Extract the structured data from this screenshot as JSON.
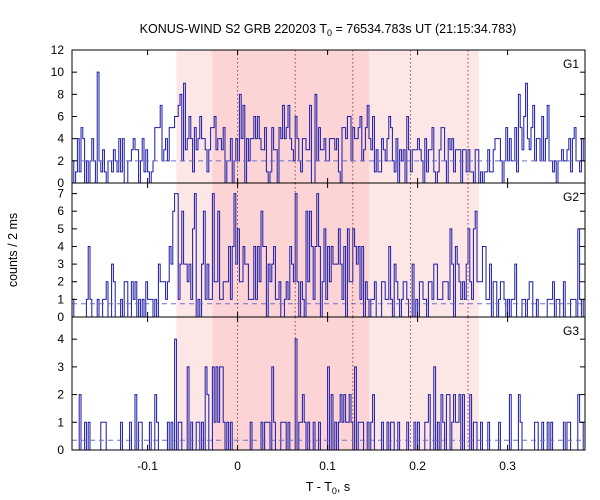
{
  "chart_data": {
    "type": "line",
    "style": "step histogram, three vertically stacked panels sharing one x axis",
    "title": {
      "prefix": "KONUS-WIND S2 GRB 220203 T",
      "sub": "0",
      "suffix": " = 76534.783s UT (21:15:34.783)"
    },
    "xlabel": {
      "prefix": "T - T",
      "sub": "0",
      "suffix": ", s"
    },
    "ylabel": "counts / 2 ms",
    "xlim": [
      -0.184,
      0.386
    ],
    "x_ticks": [
      -0.1,
      0,
      0.1,
      0.2,
      0.3
    ],
    "x_tick_labels": [
      "-0.1",
      "0",
      "0.1",
      "0.2",
      "0.3"
    ],
    "bin_width_s": 0.002,
    "line_color": "#1a1aa6",
    "background_color": "#6e6ec8",
    "shaded_intervals": [
      {
        "x0": -0.068,
        "x1": 0.268,
        "color": "#fde6e6"
      },
      {
        "x0": -0.028,
        "x1": 0.146,
        "color": "#fcd4d6"
      }
    ],
    "vertical_markers": [
      0,
      0.064,
      0.128,
      0.192,
      0.256
    ],
    "panels": [
      {
        "name": "G1",
        "ylim": [
          0,
          12
        ],
        "y_ticks": [
          0,
          2,
          4,
          6,
          8,
          10,
          12
        ],
        "background_level": 2.0,
        "keypoints": [
          [
            -0.184,
            2
          ],
          [
            -0.12,
            2.6
          ],
          [
            -0.1,
            3
          ],
          [
            -0.085,
            3.2
          ],
          [
            -0.07,
            4.5
          ],
          [
            -0.06,
            6
          ],
          [
            -0.04,
            3.5
          ],
          [
            -0.02,
            2.4
          ],
          [
            0.0,
            3.2
          ],
          [
            0.02,
            3.2
          ],
          [
            0.05,
            4.5
          ],
          [
            0.08,
            3.8
          ],
          [
            0.1,
            3
          ],
          [
            0.13,
            3.8
          ],
          [
            0.15,
            2.6
          ],
          [
            0.17,
            2.6
          ],
          [
            0.2,
            2.2
          ],
          [
            0.23,
            2.4
          ],
          [
            0.25,
            2
          ],
          [
            0.27,
            2.2
          ],
          [
            0.3,
            2.4
          ],
          [
            0.32,
            3
          ],
          [
            0.34,
            2.6
          ],
          [
            0.386,
            2.4
          ]
        ],
        "peaks": [
          [
            -0.059,
            9
          ],
          [
            -0.064,
            8
          ],
          [
            -0.084,
            7
          ],
          [
            -0.09,
            5
          ],
          [
            -0.041,
            6
          ],
          [
            -0.03,
            5
          ],
          [
            0.08,
            7
          ],
          [
            0.115,
            6
          ],
          [
            0.136,
            6
          ],
          [
            0.17,
            5
          ],
          [
            0.2,
            4
          ],
          [
            0.313,
            8
          ],
          [
            0.32,
            9
          ],
          [
            0.328,
            7
          ],
          [
            0.339,
            6
          ],
          [
            0.375,
            5
          ],
          [
            0.055,
            5
          ],
          [
            -0.127,
            4
          ]
        ],
        "zeros": [
          -0.168,
          -0.146,
          -0.097,
          -0.012,
          0.008,
          0.046,
          0.085,
          0.114,
          0.186,
          0.232,
          0.249,
          0.262,
          0.295,
          0.354
        ]
      },
      {
        "name": "G2",
        "ylim": [
          0,
          7.6
        ],
        "y_ticks": [
          0,
          1,
          2,
          3,
          4,
          5,
          6,
          7
        ],
        "background_level": 0.75,
        "keypoints": [
          [
            -0.184,
            0.4
          ],
          [
            -0.15,
            0.6
          ],
          [
            -0.12,
            0.7
          ],
          [
            -0.1,
            1
          ],
          [
            -0.085,
            2
          ],
          [
            -0.07,
            3.5
          ],
          [
            -0.05,
            3.4
          ],
          [
            -0.03,
            2.6
          ],
          [
            0.0,
            2.5
          ],
          [
            0.03,
            2.4
          ],
          [
            0.05,
            2.2
          ],
          [
            0.07,
            2.6
          ],
          [
            0.09,
            3.2
          ],
          [
            0.11,
            3.1
          ],
          [
            0.13,
            2.3
          ],
          [
            0.15,
            1.6
          ],
          [
            0.19,
            1.1
          ],
          [
            0.22,
            1.2
          ],
          [
            0.24,
            2.5
          ],
          [
            0.26,
            3.5
          ],
          [
            0.28,
            1.8
          ],
          [
            0.3,
            0.9
          ],
          [
            0.34,
            0.7
          ],
          [
            0.386,
            0.7
          ]
        ],
        "peaks": [
          [
            -0.068,
            7
          ],
          [
            -0.062,
            6
          ],
          [
            -0.028,
            7
          ],
          [
            -0.038,
            6
          ],
          [
            -0.021,
            6
          ],
          [
            0.0,
            5
          ],
          [
            0.08,
            6
          ],
          [
            0.096,
            5
          ],
          [
            0.128,
            5
          ],
          [
            0.257,
            5
          ],
          [
            0.263,
            5
          ],
          [
            0.379,
            5
          ],
          [
            0.105,
            4
          ],
          [
            0.04,
            4
          ]
        ],
        "zeros": [
          -0.175,
          -0.16,
          -0.14,
          -0.12,
          -0.09,
          0.14,
          0.16,
          0.2,
          0.31,
          0.33,
          0.36,
          0.382
        ]
      },
      {
        "name": "G3",
        "ylim": [
          0,
          4.8
        ],
        "y_ticks": [
          0,
          1,
          2,
          3,
          4
        ],
        "background_level": 0.35,
        "keypoints": [
          [
            -0.184,
            0.25
          ],
          [
            -0.12,
            0.3
          ],
          [
            -0.08,
            0.5
          ],
          [
            -0.06,
            0.9
          ],
          [
            -0.04,
            0.8
          ],
          [
            -0.02,
            0.6
          ],
          [
            0.0,
            0.3
          ],
          [
            0.02,
            0.5
          ],
          [
            0.05,
            0.6
          ],
          [
            0.08,
            0.9
          ],
          [
            0.1,
            0.8
          ],
          [
            0.12,
            0.9
          ],
          [
            0.14,
            0.6
          ],
          [
            0.17,
            0.4
          ],
          [
            0.2,
            0.5
          ],
          [
            0.24,
            0.7
          ],
          [
            0.26,
            0.4
          ],
          [
            0.3,
            0.3
          ],
          [
            0.34,
            0.3
          ],
          [
            0.386,
            0.3
          ]
        ],
        "peaks": [
          [
            -0.068,
            4
          ],
          [
            -0.056,
            3
          ],
          [
            -0.036,
            3
          ],
          [
            -0.028,
            3
          ],
          [
            0.102,
            3
          ],
          [
            0.118,
            2
          ],
          [
            0.125,
            2
          ],
          [
            0.13,
            3
          ],
          [
            0.212,
            2
          ],
          [
            0.232,
            2
          ],
          [
            0.25,
            2
          ],
          [
            0.258,
            2
          ],
          [
            0.302,
            2
          ],
          [
            -0.092,
            2
          ],
          [
            -0.175,
            2
          ],
          [
            0.33,
            1
          ],
          [
            0.38,
            1
          ]
        ],
        "zeros": []
      }
    ]
  }
}
